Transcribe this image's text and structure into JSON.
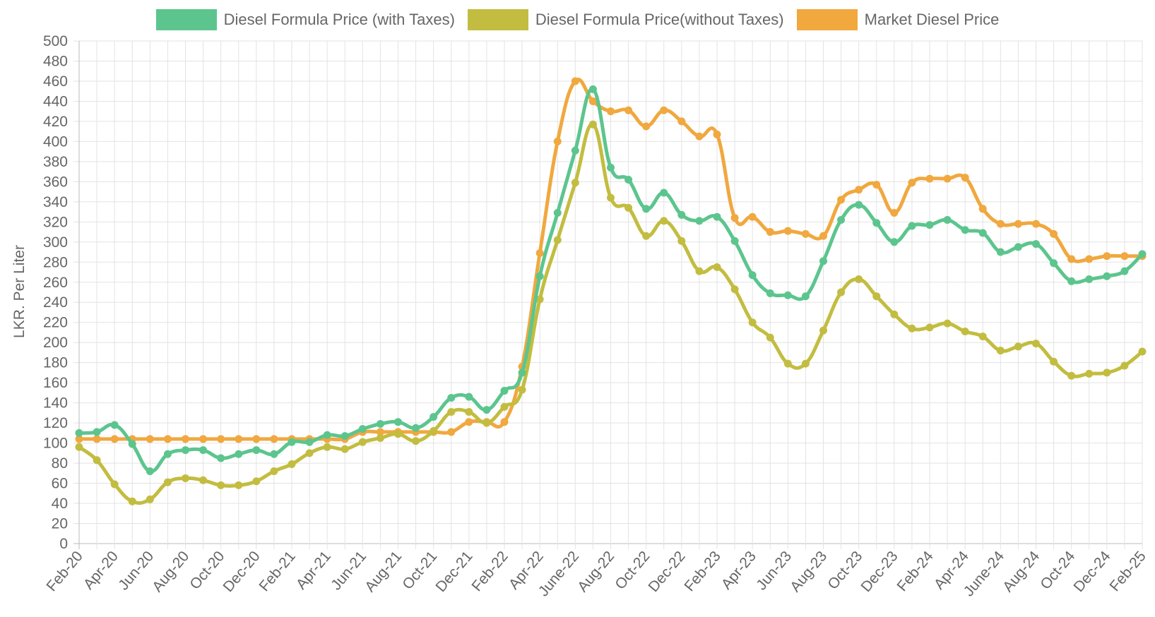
{
  "chart_data": {
    "type": "line",
    "title": "",
    "xlabel": "",
    "ylabel": "LKR. Per Liter",
    "ylim": [
      0,
      500
    ],
    "ytick_step": 20,
    "grid": true,
    "legend_position": "top",
    "x_tick_labels": [
      "Feb-20",
      "Apr-20",
      "Jun-20",
      "Aug-20",
      "Oct-20",
      "Dec-20",
      "Feb-21",
      "Apr-21",
      "Jun-21",
      "Aug-21",
      "Oct-21",
      "Dec-21",
      "Feb-22",
      "Apr-22",
      "June-22",
      "Aug-22",
      "Oct-22",
      "Dec-22",
      "Feb-23",
      "Apr-23",
      "Jun-23",
      "Aug-23",
      "Oct-23",
      "Dec-23",
      "Feb-24",
      "Apr-24",
      "June-24",
      "Aug-24",
      "Oct-24",
      "Dec-24",
      "Feb-25"
    ],
    "num_points": 61,
    "series": [
      {
        "name": "Diesel Formula Price (with Taxes)",
        "color": "#5cc58e",
        "values": [
          110,
          111,
          118,
          99,
          72,
          89,
          93,
          93,
          85,
          89,
          93,
          89,
          101,
          101,
          108,
          107,
          114,
          119,
          121,
          115,
          126,
          145,
          146,
          133,
          152,
          170,
          266,
          329,
          391,
          452,
          374,
          362,
          333,
          349,
          327,
          321,
          325,
          301,
          267,
          249,
          247,
          246,
          281,
          322,
          337,
          319,
          300,
          316,
          317,
          322,
          312,
          309,
          290,
          295,
          298,
          279,
          261,
          263,
          266,
          271,
          288
        ]
      },
      {
        "name": "Diesel Formula Price(without Taxes)",
        "color": "#c2bd40",
        "values": [
          96,
          83,
          59,
          42,
          44,
          61,
          65,
          63,
          58,
          58,
          62,
          72,
          79,
          90,
          96,
          94,
          101,
          105,
          109,
          102,
          112,
          131,
          131,
          120,
          136,
          153,
          243,
          302,
          359,
          417,
          344,
          334,
          306,
          321,
          301,
          271,
          275,
          253,
          220,
          205,
          179,
          179,
          212,
          250,
          263,
          246,
          228,
          214,
          215,
          219,
          211,
          206,
          192,
          196,
          199,
          181,
          167,
          169,
          170,
          177,
          191
        ]
      },
      {
        "name": "Market Diesel Price",
        "color": "#f0a83f",
        "values": [
          104,
          104,
          104,
          104,
          104,
          104,
          104,
          104,
          104,
          104,
          104,
          104,
          104,
          104,
          104,
          104,
          111,
          111,
          111,
          111,
          111,
          111,
          121,
          121,
          121,
          176,
          289,
          400,
          460,
          440,
          430,
          431,
          415,
          431,
          420,
          405,
          407,
          324,
          325,
          310,
          311,
          308,
          306,
          342,
          352,
          357,
          329,
          359,
          363,
          363,
          364,
          333,
          318,
          318,
          318,
          308,
          283,
          283,
          286,
          286,
          286
        ]
      }
    ]
  }
}
